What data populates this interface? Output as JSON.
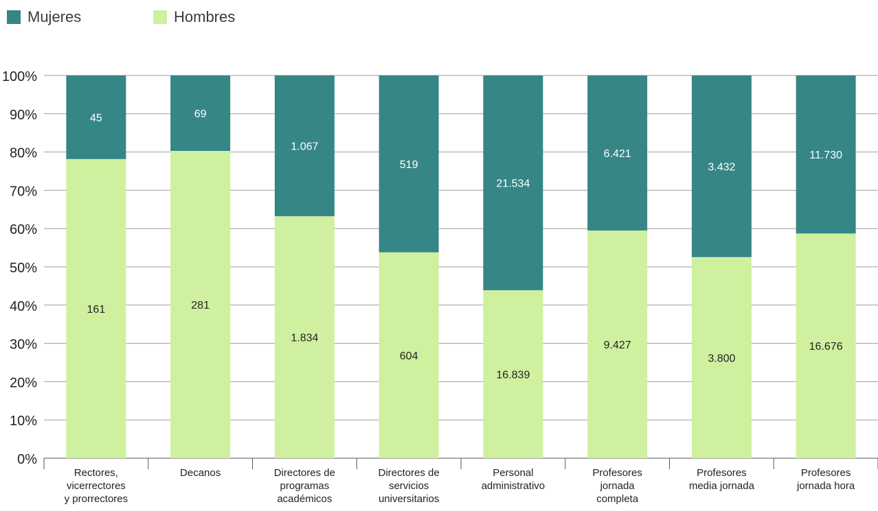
{
  "colors": {
    "mujeres": "#368686",
    "hombres": "#cff09f",
    "axis": "#555555",
    "grid": "#9e9e9e",
    "text": "#222222"
  },
  "chart_data": {
    "type": "bar",
    "stacked": true,
    "normalized": true,
    "legend_position": "top-left",
    "grid": true,
    "ylim": [
      0,
      100
    ],
    "y_ticks": [
      "0%",
      "10%",
      "20%",
      "30%",
      "40%",
      "50%",
      "60%",
      "70%",
      "80%",
      "90%",
      "100%"
    ],
    "categories": [
      "Rectores, vicerrectores y prorrectores",
      "Decanos",
      "Directores de programas académicos",
      "Directores de servicios universitarios",
      "Personal administrativo",
      "Profesores jornada completa",
      "Profesores media jornada",
      "Profesores jornada hora"
    ],
    "category_lines": [
      [
        "Rectores,",
        "vicerrectores",
        "y prorrectores"
      ],
      [
        "Decanos"
      ],
      [
        "Directores de",
        "programas",
        "académicos"
      ],
      [
        "Directores de",
        "servicios",
        "universitarios"
      ],
      [
        "Personal",
        "administrativo"
      ],
      [
        "Profesores",
        "jornada",
        "completa"
      ],
      [
        "Profesores",
        "media jornada"
      ],
      [
        "Profesores",
        "jornada hora"
      ]
    ],
    "series": [
      {
        "name": "Hombres",
        "values": [
          161,
          281,
          1834,
          604,
          16839,
          9427,
          3800,
          16676
        ],
        "labels": [
          "161",
          "281",
          "1.834",
          "604",
          "16.839",
          "9.427",
          "3.800",
          "16.676"
        ]
      },
      {
        "name": "Mujeres",
        "values": [
          45,
          69,
          1067,
          519,
          21534,
          6421,
          3432,
          11730
        ],
        "labels": [
          "45",
          "69",
          "1.067",
          "519",
          "21.534",
          "6.421",
          "3.432",
          "11.730"
        ]
      }
    ]
  }
}
